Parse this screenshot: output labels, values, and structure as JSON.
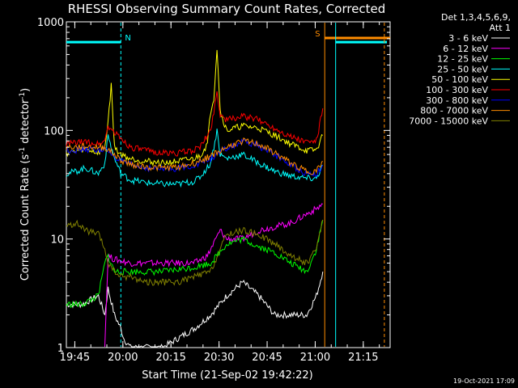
{
  "chart_data": {
    "type": "line",
    "title": "RHESSI Observing Summary Count Rates, Corrected",
    "xlabel": "Start Time (21-Sep-02 19:42:22)",
    "ylabel_main": "Corrected Count Rate (s",
    "ylabel_sup1": "-1",
    "ylabel_mid": " detector",
    "ylabel_sup2": "-1",
    "ylabel_end": ")",
    "y_scale": "log",
    "ylim": [
      1,
      1000
    ],
    "xlim_minutes": [
      0,
      101
    ],
    "x_tick_labels": [
      "19:45",
      "20:00",
      "20:15",
      "20:30",
      "20:45",
      "21:00",
      "21:15"
    ],
    "x_tick_minutes": [
      2.63,
      17.63,
      32.63,
      47.63,
      62.63,
      77.63,
      92.63
    ],
    "y_tick_labels": [
      "1",
      "10",
      "100",
      "1000"
    ],
    "y_tick_values": [
      1,
      10,
      100,
      1000
    ],
    "legend_title": "Det 1,3,4,5,6,9,",
    "legend_subtitle": "Att 1",
    "legend_position": "right",
    "timestamp": "19-Oct-2021 17:09",
    "flags": [
      {
        "label": "N",
        "color": "#00ffff",
        "start_minute": 0,
        "end_minute": 17,
        "level": 650
      },
      {
        "label": "S",
        "color": "#ff8c00",
        "start_minute": 80.6,
        "end_minute": 101,
        "level": 710
      },
      {
        "label": "",
        "color": "#00ffff",
        "start_minute": 84,
        "end_minute": 100,
        "level": 650
      }
    ],
    "markers": [
      {
        "minute": 17,
        "color": "#00ffff",
        "style": "dashed"
      },
      {
        "minute": 80.6,
        "color": "#ff8c00",
        "style": "solid"
      },
      {
        "minute": 84,
        "color": "#00ffff",
        "style": "solid"
      },
      {
        "minute": 99.2,
        "color": "#ff8c00",
        "style": "dashed"
      }
    ],
    "series": [
      {
        "name": "3 - 6 keV",
        "color": "#ffffff",
        "x": [
          0,
          5,
          10,
          12,
          13,
          15,
          17,
          18,
          20,
          30,
          40,
          45,
          50,
          55,
          60,
          65,
          70,
          75,
          78,
          80
        ],
        "y": [
          2.5,
          2.5,
          3,
          2,
          3.5,
          2,
          1.5,
          1.2,
          1,
          1,
          1.5,
          2,
          3,
          4,
          3,
          2,
          2,
          2,
          3,
          5
        ]
      },
      {
        "name": "6 - 12 keV",
        "color": "#ff00ff",
        "x": [
          12,
          13,
          15,
          20,
          30,
          40,
          44,
          48,
          50,
          55,
          60,
          65,
          70,
          75,
          78,
          80
        ],
        "y": [
          1,
          7,
          6.5,
          6,
          6,
          6,
          7,
          12,
          10,
          10,
          12,
          13,
          14,
          17,
          19,
          21
        ]
      },
      {
        "name": "12 - 25 keV",
        "color": "#00ff00",
        "x": [
          0,
          5,
          10,
          12,
          13,
          15,
          20,
          30,
          40,
          45,
          50,
          55,
          60,
          65,
          70,
          75,
          78,
          80
        ],
        "y": [
          2.5,
          2.5,
          3,
          6,
          7,
          5,
          5,
          5,
          5.5,
          6,
          9,
          10,
          8.5,
          7.5,
          6,
          5,
          8,
          15
        ]
      },
      {
        "name": "25 - 50 keV",
        "color": "#00ffff",
        "x": [
          0,
          3,
          6,
          10,
          12,
          13,
          15,
          17,
          20,
          25,
          30,
          35,
          40,
          42,
          45,
          46,
          47,
          48,
          50,
          55,
          60,
          65,
          70,
          75,
          78,
          80
        ],
        "y": [
          40,
          42,
          45,
          40,
          50,
          90,
          55,
          40,
          35,
          33,
          32,
          32,
          34,
          38,
          50,
          70,
          100,
          60,
          55,
          60,
          50,
          42,
          38,
          36,
          36,
          48
        ]
      },
      {
        "name": "50 - 100 keV",
        "color": "#ffff00",
        "x": [
          0,
          3,
          6,
          10,
          12,
          13,
          14,
          15,
          17,
          20,
          25,
          30,
          35,
          40,
          42,
          44,
          45,
          46,
          47,
          48,
          50,
          55,
          60,
          65,
          70,
          75,
          78,
          80
        ],
        "y": [
          62,
          64,
          68,
          62,
          70,
          120,
          260,
          70,
          60,
          55,
          52,
          50,
          52,
          55,
          60,
          75,
          150,
          200,
          580,
          150,
          100,
          110,
          105,
          90,
          75,
          65,
          66,
          90
        ]
      },
      {
        "name": "100 - 300 keV",
        "color": "#ff0000",
        "x": [
          0,
          3,
          6,
          10,
          12,
          13,
          15,
          17,
          20,
          25,
          30,
          35,
          40,
          42,
          45,
          46,
          47,
          48,
          50,
          55,
          60,
          65,
          70,
          75,
          78,
          80
        ],
        "y": [
          75,
          77,
          78,
          75,
          80,
          110,
          95,
          85,
          70,
          65,
          62,
          62,
          66,
          72,
          100,
          150,
          230,
          140,
          125,
          135,
          125,
          105,
          88,
          78,
          80,
          160
        ]
      },
      {
        "name": "300 - 800 keV",
        "color": "#0000ff",
        "x": [
          0,
          3,
          6,
          10,
          12,
          15,
          17,
          20,
          25,
          30,
          35,
          40,
          45,
          50,
          55,
          60,
          65,
          70,
          75,
          78,
          80
        ],
        "y": [
          66,
          66,
          67,
          66,
          67,
          58,
          52,
          48,
          45,
          44,
          45,
          48,
          55,
          68,
          78,
          72,
          60,
          48,
          40,
          40,
          48
        ]
      },
      {
        "name": "800 - 7000 keV",
        "color": "#ff8c00",
        "x": [
          0,
          3,
          6,
          10,
          12,
          15,
          17,
          20,
          25,
          30,
          35,
          40,
          45,
          50,
          55,
          60,
          65,
          70,
          75,
          78,
          80
        ],
        "y": [
          70,
          70,
          71,
          70,
          70,
          60,
          53,
          49,
          46,
          45,
          46,
          50,
          58,
          70,
          80,
          75,
          62,
          50,
          42,
          42,
          52
        ]
      },
      {
        "name": "7000 - 15000 keV",
        "color": "#808000",
        "x": [
          0,
          3,
          6,
          10,
          12,
          13,
          15,
          17,
          20,
          25,
          30,
          35,
          40,
          45,
          48,
          50,
          55,
          60,
          65,
          70,
          75,
          78,
          80
        ],
        "y": [
          13,
          14,
          12,
          11,
          8,
          6,
          5,
          4.5,
          4.5,
          4,
          4,
          4,
          4.5,
          5,
          8,
          11,
          12,
          11,
          9,
          7,
          6,
          8,
          15
        ]
      }
    ]
  }
}
